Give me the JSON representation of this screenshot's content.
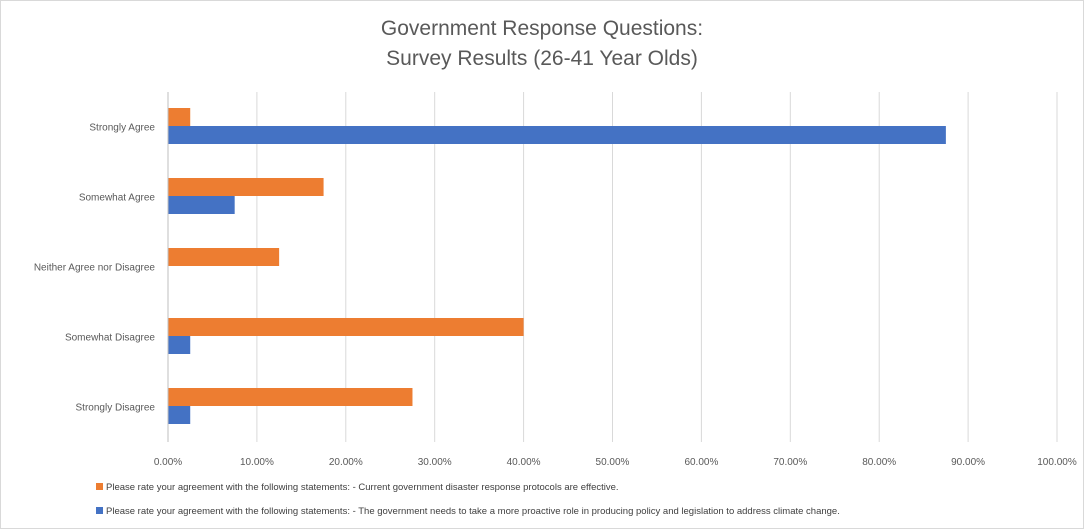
{
  "chart_data": {
    "type": "bar",
    "orientation": "horizontal",
    "title": [
      "Government Response Questions:",
      "Survey Results (26-41 Year Olds)"
    ],
    "categories": [
      "Strongly Agree",
      "Somewhat Agree",
      "Neither Agree nor Disagree",
      "Somewhat Disagree",
      "Strongly Disagree"
    ],
    "series": [
      {
        "name": "Please rate your agreement with the following statements: - Current government disaster response protocols are effective.",
        "color": "#ed7d31",
        "values": [
          2.5,
          17.5,
          12.5,
          40.0,
          27.5
        ]
      },
      {
        "name": "Please rate your agreement with the following statements: - The government needs to take a more proactive role in producing policy and legislation to address climate change.",
        "color": "#4472c4",
        "values": [
          87.5,
          7.5,
          0.0,
          2.5,
          2.5
        ]
      }
    ],
    "xlim": [
      0,
      100
    ],
    "x_ticks": [
      "0.00%",
      "10.00%",
      "20.00%",
      "30.00%",
      "40.00%",
      "50.00%",
      "60.00%",
      "70.00%",
      "80.00%",
      "90.00%",
      "100.00%"
    ],
    "grid": true,
    "legend_position": "bottom"
  }
}
